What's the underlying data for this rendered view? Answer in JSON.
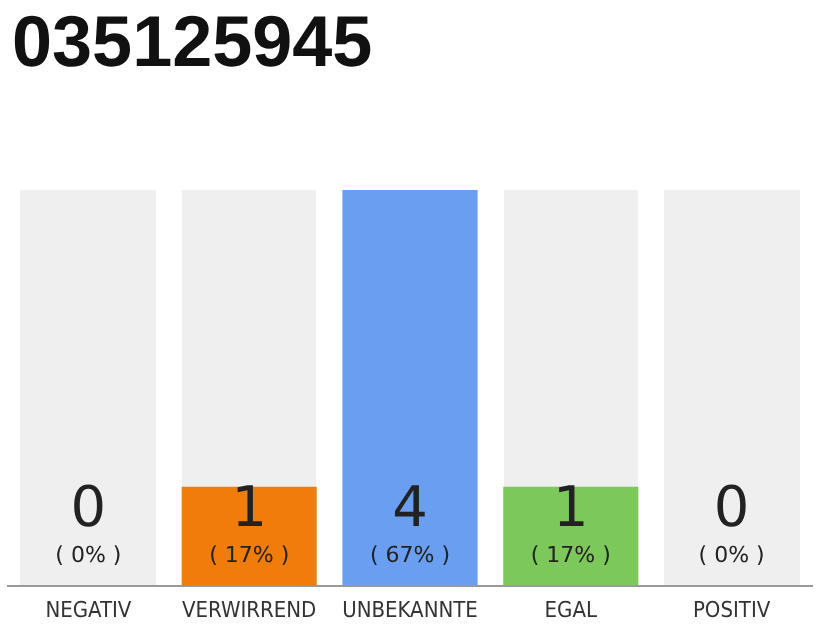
{
  "chart_data": {
    "type": "bar",
    "title": "035125945",
    "categories": [
      "NEGATIV",
      "VERWIRREND",
      "UNBEKANNTE",
      "EGAL",
      "POSITIV"
    ],
    "values": [
      0,
      1,
      4,
      1,
      0
    ],
    "colors": [
      "#f07d0a",
      "#f07d0a",
      "#6a9ef0",
      "#7dc85a",
      "#7dc85a"
    ],
    "value_labels": [
      "0",
      "1",
      "4",
      "1",
      "0"
    ],
    "annotations": [
      "( 0% )",
      "( 17% )",
      "( 67% )",
      "( 17% )",
      "( 0% )"
    ],
    "grid": false,
    "legend": false
  }
}
